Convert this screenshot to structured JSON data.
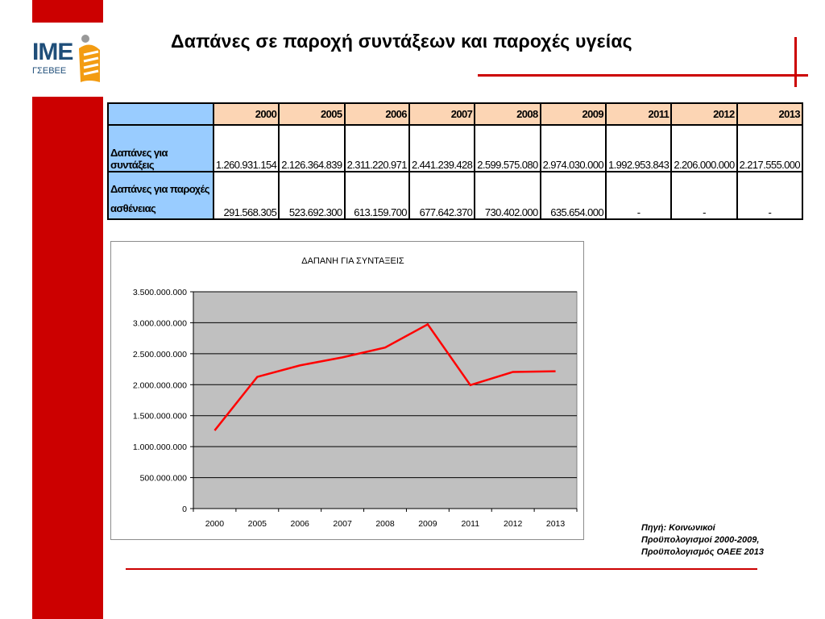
{
  "logo": {
    "text": "ΙΜΕ",
    "sub": "ΓΣΕΒΕΕ"
  },
  "title": "Δαπάνες σε παροχή συντάξεων και παροχές υγείας",
  "table": {
    "years": [
      "2000",
      "2005",
      "2006",
      "2007",
      "2008",
      "2009",
      "2011",
      "2012",
      "2013"
    ],
    "rows": [
      {
        "label": "Δαπάνες για συντάξεις",
        "values": [
          "1.260.931.154",
          "2.126.364.839",
          "2.311.220.971",
          "2.441.239.428",
          "2.599.575.080",
          "2.974.030.000",
          "1.992.953.843",
          "2.206.000.000",
          "2.217.555.000"
        ]
      },
      {
        "label_line1": "Δαπάνες για παροχές",
        "label_line2": "ασθένειας",
        "values": [
          "291.568.305",
          "523.692.300",
          "613.159.700",
          "677.642.370",
          "730.402.000",
          "635.654.000",
          "-",
          "-",
          "-"
        ]
      }
    ]
  },
  "chart_data": {
    "type": "line",
    "title": "ΔΑΠΑΝΗ ΓΙΑ ΣΥΝΤΑΞΕΙΣ",
    "categories": [
      "2000",
      "2005",
      "2006",
      "2007",
      "2008",
      "2009",
      "2011",
      "2012",
      "2013"
    ],
    "series": [
      {
        "values": [
          1260931154,
          2126364839,
          2311220971,
          2441239428,
          2599575080,
          2974030000,
          1992953843,
          2206000000,
          2217555000
        ],
        "color": "#ff0000"
      }
    ],
    "ylim": [
      0,
      3500000000
    ],
    "yticks": [
      0,
      500000000,
      1000000000,
      1500000000,
      2000000000,
      2500000000,
      3000000000,
      3500000000
    ],
    "ytick_labels": [
      "0",
      "500.000.000",
      "1.000.000.000",
      "1.500.000.000",
      "2.000.000.000",
      "2.500.000.000",
      "3.000.000.000",
      "3.500.000.000"
    ],
    "grid": true,
    "plot_background": "#c0c0c0",
    "legend": "none"
  },
  "source": {
    "line1": "Πηγή: Κοινωνικοί",
    "line2": "Προϋπολογισμοί 2000-2009,",
    "line3": "Προϋπολογισμός ΟΑΕΕ 2013"
  },
  "colors": {
    "accent": "#cc0000",
    "year_header": "#fcd5b4",
    "label_cell": "#99ccff",
    "logo": "#1f4e79"
  }
}
